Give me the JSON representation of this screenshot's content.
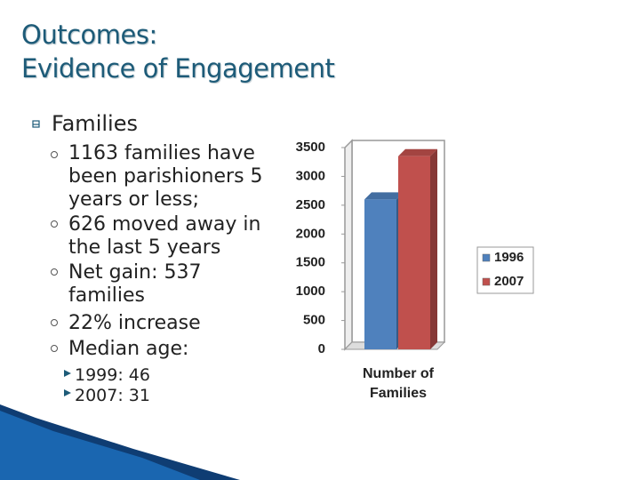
{
  "title": [
    "Outcomes:",
    "Evidence of Engagement"
  ],
  "bullets": {
    "heading": "Families",
    "items": [
      "1163 families have been parishioners 5 years or less;",
      "626 moved away in the last 5 years",
      "Net gain: 537 families",
      "22% increase",
      "Median age:"
    ],
    "subitems": [
      "1999: 46",
      "2007: 31"
    ]
  },
  "chart_data": {
    "type": "bar",
    "categories": [
      "Number of Families"
    ],
    "series": [
      {
        "name": "1996",
        "color": "#4f81bd",
        "values": [
          2600
        ]
      },
      {
        "name": "2007",
        "color": "#c0504d",
        "values": [
          3350
        ]
      }
    ],
    "ylim": [
      0,
      3500
    ],
    "yticks": [
      0,
      500,
      1000,
      1500,
      2000,
      2500,
      3000,
      3500
    ],
    "grid": false,
    "legend": "right"
  }
}
